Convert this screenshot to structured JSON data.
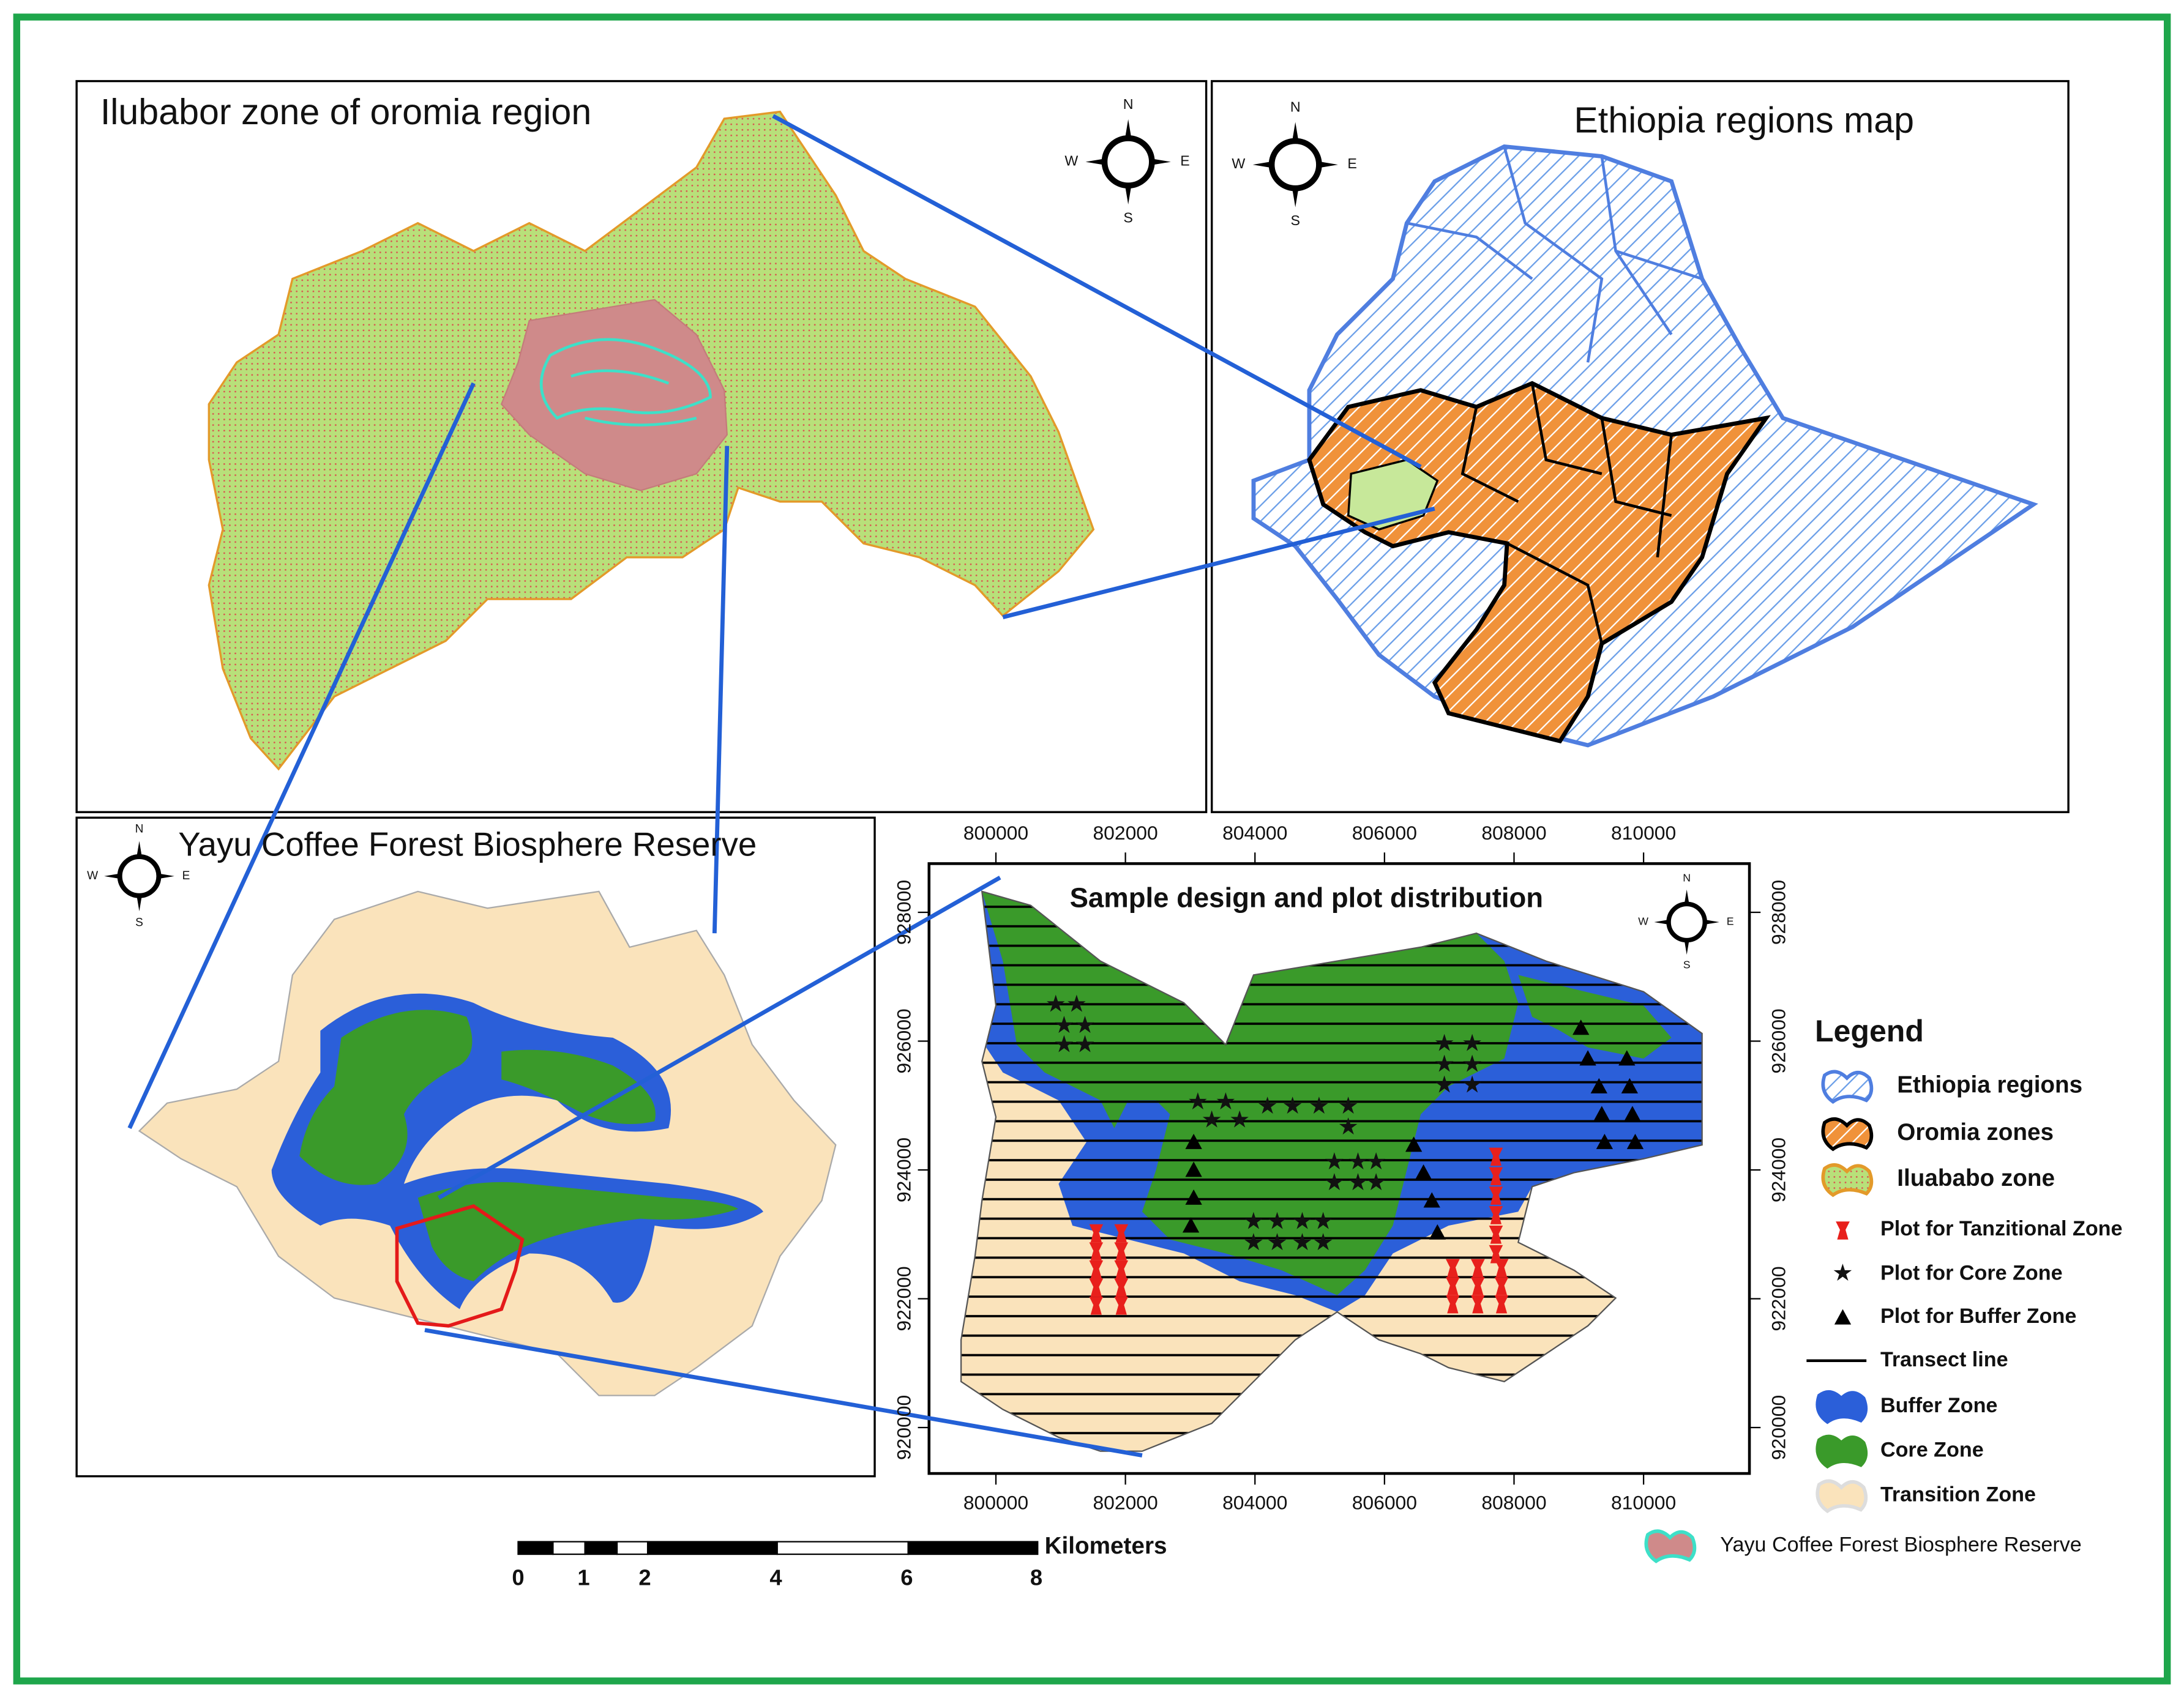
{
  "panels": {
    "ilubabor": {
      "title": "Ilubabor zone of oromia region"
    },
    "ethiopia": {
      "title": "Ethiopia regions map"
    },
    "yayu": {
      "title": "Yayu Coffee Forest Biosphere Reserve"
    },
    "sample": {
      "title": "Sample design and plot distribution",
      "x_ticks": [
        "800000",
        "802000",
        "804000",
        "806000",
        "808000",
        "810000"
      ],
      "y_ticks": [
        "928000",
        "926000",
        "924000",
        "922000",
        "920000"
      ]
    }
  },
  "compass": {
    "n": "N",
    "e": "E",
    "s": "S",
    "w": "W"
  },
  "legend": {
    "title": "Legend",
    "items": [
      "Ethiopia regions",
      "Oromia zones",
      "Iluababo zone",
      "Plot for Tanzitional Zone",
      "Plot for Core Zone",
      "Plot for Buffer Zone",
      "Transect line",
      "Buffer Zone",
      "Core Zone",
      "Transition Zone",
      "Yayu Coffee Forest Biosphere Reserve"
    ]
  },
  "scale_bar": {
    "unit": "Kilometers",
    "ticks": [
      "0",
      "1",
      "2",
      "4",
      "6",
      "8"
    ]
  }
}
